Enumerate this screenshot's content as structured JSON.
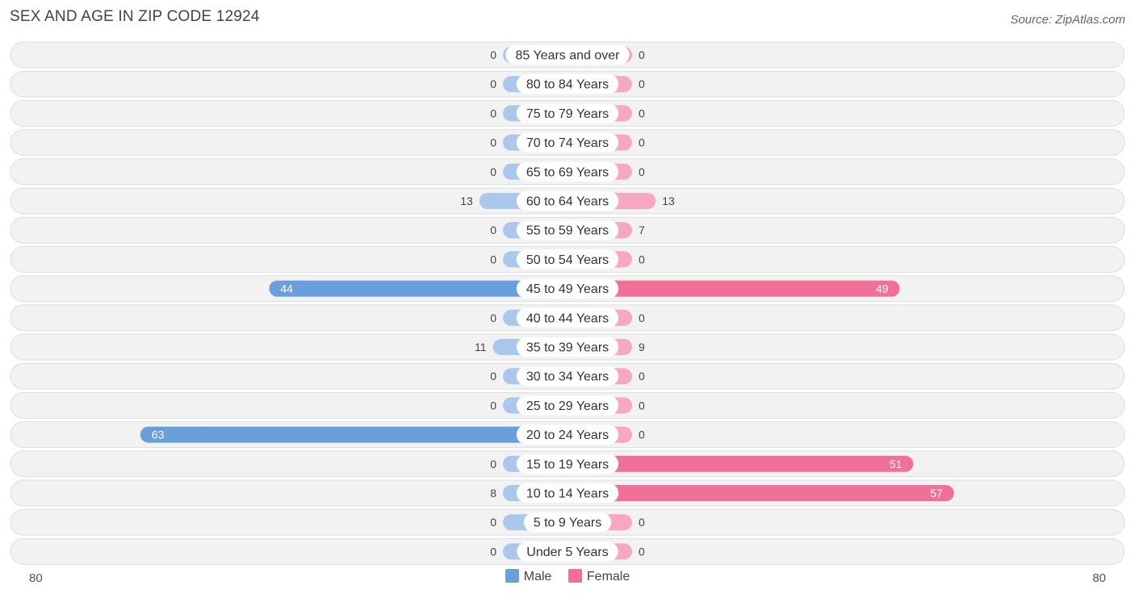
{
  "title": "SEX AND AGE IN ZIP CODE 12924",
  "source": "Source: ZipAtlas.com",
  "colors": {
    "male_light": "#aac8ec",
    "male_dark": "#6a9fdb",
    "female_light": "#f7a8c1",
    "female_dark": "#f07098"
  },
  "chart_data": {
    "type": "bar",
    "categories": [
      "85 Years and over",
      "80 to 84 Years",
      "75 to 79 Years",
      "70 to 74 Years",
      "65 to 69 Years",
      "60 to 64 Years",
      "55 to 59 Years",
      "50 to 54 Years",
      "45 to 49 Years",
      "40 to 44 Years",
      "35 to 39 Years",
      "30 to 34 Years",
      "25 to 29 Years",
      "20 to 24 Years",
      "15 to 19 Years",
      "10 to 14 Years",
      "5 to 9 Years",
      "Under 5 Years"
    ],
    "series": [
      {
        "name": "Male",
        "values": [
          0,
          0,
          0,
          0,
          0,
          13,
          0,
          0,
          44,
          0,
          11,
          0,
          0,
          63,
          0,
          8,
          0,
          0
        ]
      },
      {
        "name": "Female",
        "values": [
          0,
          0,
          0,
          0,
          0,
          13,
          7,
          0,
          49,
          0,
          9,
          0,
          0,
          0,
          51,
          57,
          0,
          0
        ]
      }
    ],
    "xlim": [
      -80,
      80
    ],
    "axis_left_label": "80",
    "axis_right_label": "80",
    "legend_position": "bottom"
  }
}
